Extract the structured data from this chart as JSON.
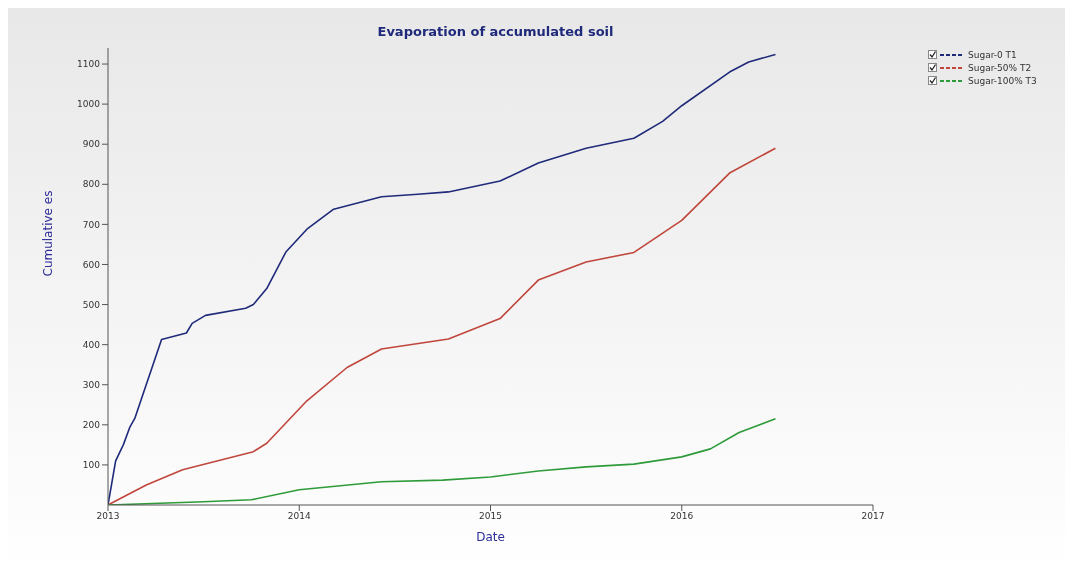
{
  "chart_data": {
    "type": "line",
    "title": "Evaporation of accumulated soil",
    "xlabel": "Date",
    "ylabel": "Cumulative es",
    "xlim": [
      2013,
      2017
    ],
    "xticks": [
      2013,
      2014,
      2015,
      2016,
      2017
    ],
    "ylim": [
      0,
      1140
    ],
    "yticks": [
      100,
      200,
      300,
      400,
      500,
      600,
      700,
      800,
      900,
      1000,
      1100
    ],
    "grid": false,
    "legend": "top right",
    "marker": "none",
    "line_style": "solid",
    "series": [
      {
        "name": "Sugar-0 T1",
        "color": "#1f2a7a",
        "x": [
          2013,
          2013.04,
          2013.08,
          2013.115,
          2013.14,
          2013.28,
          2013.41,
          2013.44,
          2013.51,
          2013.72,
          2013.76,
          2013.83,
          2013.93,
          2014.04,
          2014.18,
          2014.43,
          2014.62,
          2014.78,
          2015.05,
          2015.25,
          2015.5,
          2015.75,
          2015.9,
          2016,
          2016.25,
          2016.35,
          2016.49
        ],
        "values": [
          0,
          110,
          150,
          195,
          216,
          413,
          429,
          453,
          473,
          491,
          500,
          540,
          631,
          688,
          738,
          769,
          775,
          781,
          808,
          853,
          890,
          915,
          957,
          996,
          1080,
          1105,
          1124
        ]
      },
      {
        "name": "Sugar-50% T2",
        "color": "#c0463c",
        "x": [
          2013,
          2013.2,
          2013.39,
          2013.76,
          2013.83,
          2014.04,
          2014.25,
          2014.43,
          2014.78,
          2015.05,
          2015.25,
          2015.5,
          2015.75,
          2016,
          2016.25,
          2016.49
        ],
        "values": [
          0,
          50,
          88,
          133,
          154,
          260,
          343,
          389,
          414,
          465,
          561,
          606,
          630,
          710,
          828,
          890
        ]
      },
      {
        "name": "Sugar-100% T3",
        "color": "#2e9b3a",
        "x": [
          2013,
          2013.5,
          2013.75,
          2014,
          2014.43,
          2014.75,
          2015,
          2015.25,
          2015.5,
          2015.75,
          2016,
          2016.15,
          2016.3,
          2016.49
        ],
        "values": [
          0,
          8,
          13,
          38,
          58,
          62,
          70,
          85,
          95,
          102,
          120,
          140,
          181,
          215
        ]
      }
    ]
  }
}
